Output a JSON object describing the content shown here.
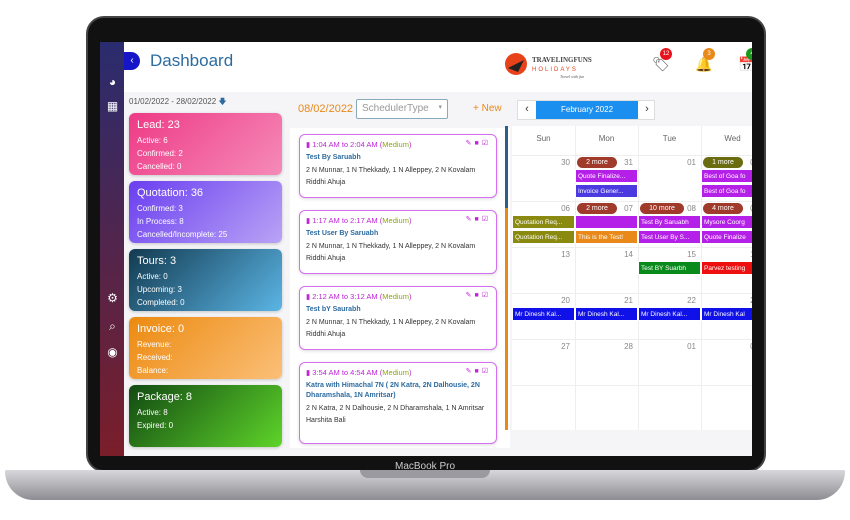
{
  "device": {
    "label": "MacBook Pro"
  },
  "header": {
    "title": "Dashboard",
    "logo_text": "TRAVELINGFUNS HOLIDAYS",
    "logo_tagline": "Travel with fun",
    "badges": [
      {
        "icon": "tag-icon",
        "count": "12",
        "color": "#e8121c"
      },
      {
        "icon": "bell-icon",
        "count": "3",
        "color": "#e8891a"
      },
      {
        "icon": "calendar-check-icon",
        "count": "4",
        "color": "#1a9a1a"
      }
    ]
  },
  "sidebar": {
    "icons": [
      "dashboard-icon",
      "apps-grid-icon",
      "gear-icon",
      "search-icon",
      "user-icon"
    ]
  },
  "date_range": "01/02/2022 - 28/02/2022",
  "cards": [
    {
      "title": "Lead: 23",
      "lines": [
        "Active: 6",
        "Confirmed: 2",
        "Cancelled: 0"
      ],
      "colors": [
        "#ee3a86",
        "#f58bb8"
      ]
    },
    {
      "title": "Quotation: 36",
      "lines": [
        "Confirmed: 3",
        "In Process: 8",
        "Cancelled/Incomplete: 25"
      ],
      "colors": [
        "#6a3ef0",
        "#b9a3f5"
      ]
    },
    {
      "title": "Tours: 3",
      "lines": [
        "Active: 0",
        "Upcoming: 3",
        "Completed: 0"
      ],
      "colors": [
        "#123a50",
        "#5bb5e5"
      ]
    },
    {
      "title": "Invoice: 0",
      "lines": [
        "Revenue:",
        "Received:",
        "Balance:"
      ],
      "colors": [
        "#ec8a10",
        "#fbbf78"
      ]
    },
    {
      "title": "Package: 8",
      "lines": [
        "Active: 8",
        "Expired: 0"
      ],
      "colors": [
        "#124a12",
        "#5ed42a"
      ]
    }
  ],
  "scheduler": {
    "date": "08/02/2022",
    "type_placeholder": "SchedulerType",
    "new_label": "+ New",
    "events": [
      {
        "time": "1:04 AM to 2:04 AM",
        "priority": "Medium",
        "name": "Test By Saruabh",
        "details": "2 N Munnar, 1 N Thekkady, 1 N Alleppey, 2 N Kovalam",
        "person": "Riddhi Ahuja"
      },
      {
        "time": "1:17 AM to 2:17 AM",
        "priority": "Medium",
        "name": "Test User By Saruabh",
        "details": "2 N Munnar, 1 N Thekkady, 1 N Alleppey, 2 N Kovalam",
        "person": "Riddhi Ahuja"
      },
      {
        "time": "2:12 AM to 3:12 AM",
        "priority": "Medium",
        "name": "Test bY Saurabh",
        "details": "2 N Munnar, 1 N Thekkady, 1 N Alleppey, 2 N Kovalam",
        "person": "Riddhi Ahuja"
      },
      {
        "time": "3:54 AM to 4:54 AM",
        "priority": "Medium",
        "name": "Katra with Himachal 7N ( 2N Katra, 2N Dalhousie, 2N Dharamshala, 1N Amritsar)",
        "details": "2 N Katra, 2 N Dalhousie, 2 N Dharamshala, 1 N Amritsar",
        "person": "Harshita Bali"
      }
    ]
  },
  "calendar": {
    "month": "February 2022",
    "prev": "‹",
    "next": "›",
    "days": [
      "Sun",
      "Mon",
      "Tue",
      "Wed"
    ],
    "weeks": [
      [
        "30",
        "31",
        "01",
        "02"
      ],
      [
        "06",
        "07",
        "08",
        "09"
      ],
      [
        "13",
        "14",
        "15",
        "16"
      ],
      [
        "20",
        "21",
        "22",
        "23"
      ],
      [
        "27",
        "28",
        "01",
        "02"
      ],
      [
        "",
        "",
        "",
        ""
      ]
    ],
    "more": [
      {
        "week": 0,
        "day": 1,
        "label": "2 more",
        "color": "#a03a2a"
      },
      {
        "week": 0,
        "day": 3,
        "label": "1 more",
        "color": "#6b6b10"
      },
      {
        "week": 1,
        "day": 1,
        "label": "2 more",
        "color": "#a03a2a"
      },
      {
        "week": 1,
        "day": 2,
        "label": "10 more",
        "color": "#a03a2a"
      },
      {
        "week": 1,
        "day": 3,
        "label": "4 more",
        "color": "#a03a2a"
      }
    ],
    "events": [
      {
        "week": 0,
        "day": 1,
        "slot": 0,
        "label": "Quote Finalize...",
        "color": "#b520e8"
      },
      {
        "week": 0,
        "day": 1,
        "slot": 1,
        "label": "Invoice Gener...",
        "color": "#4a3ae0"
      },
      {
        "week": 0,
        "day": 3,
        "slot": 0,
        "label": "Best of Goa fo",
        "color": "#b520e8"
      },
      {
        "week": 0,
        "day": 3,
        "slot": 1,
        "label": "Best of Goa fo",
        "color": "#b520e8"
      },
      {
        "week": 1,
        "day": 0,
        "slot": 0,
        "label": "Quotation Req...",
        "color": "#8a8a10"
      },
      {
        "week": 1,
        "day": 0,
        "slot": 1,
        "label": "Quotation Req...",
        "color": "#8a8a10"
      },
      {
        "week": 1,
        "day": 1,
        "slot": 0,
        "label": "",
        "color": "#b520e8"
      },
      {
        "week": 1,
        "day": 1,
        "slot": 1,
        "label": "This is the Test!",
        "color": "#e8891a"
      },
      {
        "week": 1,
        "day": 2,
        "slot": 0,
        "label": "Test By Saruabh",
        "color": "#b520e8"
      },
      {
        "week": 1,
        "day": 2,
        "slot": 1,
        "label": "Test User By S...",
        "color": "#b520e8"
      },
      {
        "week": 1,
        "day": 3,
        "slot": 0,
        "label": "Mysore Coorg",
        "color": "#b520e8"
      },
      {
        "week": 1,
        "day": 3,
        "slot": 1,
        "label": "Quote Finalize",
        "color": "#b520e8"
      },
      {
        "week": 2,
        "day": 2,
        "slot": 0,
        "label": "Test BY Suarbh",
        "color": "#0a8a1a"
      },
      {
        "week": 2,
        "day": 3,
        "slot": 0,
        "label": "Parvez testing",
        "color": "#ee1010"
      },
      {
        "week": 3,
        "day": 0,
        "slot": 0,
        "label": "Mr Dinesh Kal...",
        "color": "#1010e8"
      },
      {
        "week": 3,
        "day": 1,
        "slot": 0,
        "label": "Mr Dinesh Kal...",
        "color": "#1010e8"
      },
      {
        "week": 3,
        "day": 2,
        "slot": 0,
        "label": "Mr Dinesh Kal...",
        "color": "#1010e8"
      },
      {
        "week": 3,
        "day": 3,
        "slot": 0,
        "label": "Mr Dinesh Kal",
        "color": "#1010e8"
      }
    ]
  }
}
